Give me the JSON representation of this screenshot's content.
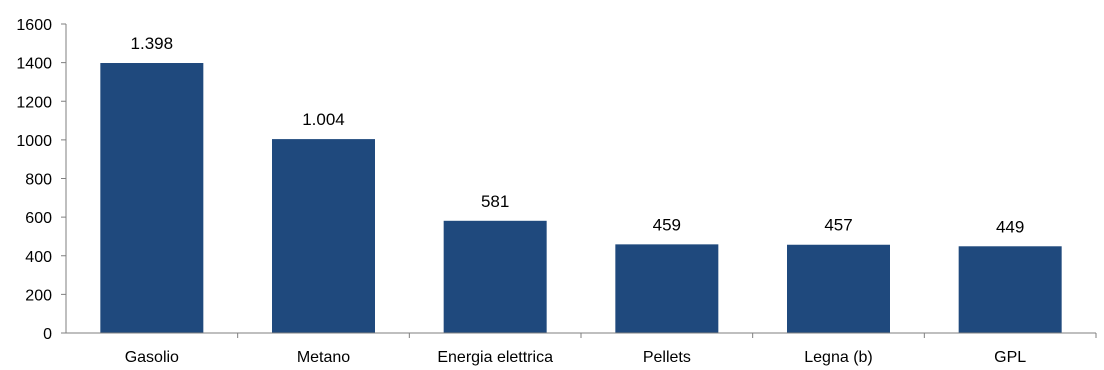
{
  "chart_data": {
    "type": "bar",
    "categories": [
      "Gasolio",
      "Metano",
      "Energia elettrica",
      "Pellets",
      "Legna (b)",
      "GPL"
    ],
    "values": [
      1398,
      1004,
      581,
      459,
      457,
      449
    ],
    "data_labels": [
      "1.398",
      "1.004",
      "581",
      "459",
      "457",
      "449"
    ],
    "ylim": [
      0,
      1600
    ],
    "y_ticks": [
      0,
      200,
      400,
      600,
      800,
      1000,
      1200,
      1400,
      1600
    ],
    "grid": false,
    "legend": "none",
    "bar_color": "#1f497d"
  }
}
